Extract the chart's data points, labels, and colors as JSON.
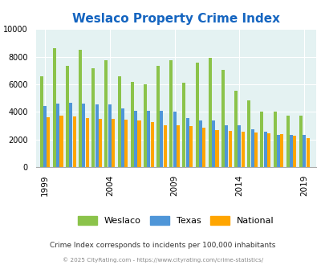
{
  "title": "Weslaco Property Crime Index",
  "years": [
    1999,
    2000,
    2001,
    2002,
    2003,
    2004,
    2005,
    2006,
    2007,
    2008,
    2009,
    2010,
    2011,
    2012,
    2013,
    2014,
    2015,
    2016,
    2017,
    2018,
    2019
  ],
  "weslaco": [
    6600,
    8600,
    7350,
    8500,
    7150,
    7750,
    6600,
    6200,
    6000,
    7350,
    7750,
    6100,
    7550,
    7900,
    7050,
    5550,
    4850,
    4000,
    4000,
    3700,
    3700
  ],
  "texas": [
    4450,
    4600,
    4650,
    4600,
    4550,
    4550,
    4250,
    4100,
    4050,
    4050,
    4000,
    3550,
    3400,
    3350,
    3050,
    3000,
    2750,
    2550,
    2350,
    2300,
    2350
  ],
  "national": [
    3600,
    3700,
    3650,
    3550,
    3500,
    3500,
    3450,
    3400,
    3250,
    3050,
    3000,
    2950,
    2850,
    2700,
    2600,
    2550,
    2500,
    2450,
    2400,
    2280,
    2100
  ],
  "bar_colors": {
    "weslaco": "#8bc34a",
    "texas": "#4f96d8",
    "national": "#ffa500"
  },
  "ylim": [
    0,
    10000
  ],
  "yticks": [
    0,
    2000,
    4000,
    6000,
    8000,
    10000
  ],
  "plot_bg_color": "#e4f2f2",
  "fig_bg_color": "#ffffff",
  "title_color": "#1565c0",
  "title_fontsize": 11,
  "subtitle": "Crime Index corresponds to incidents per 100,000 inhabitants",
  "footer": "© 2025 CityRating.com - https://www.cityrating.com/crime-statistics/",
  "xtick_labels": [
    "1999",
    "2004",
    "2009",
    "2014",
    "2019"
  ],
  "xtick_positions": [
    1999,
    2004,
    2009,
    2014,
    2019
  ]
}
